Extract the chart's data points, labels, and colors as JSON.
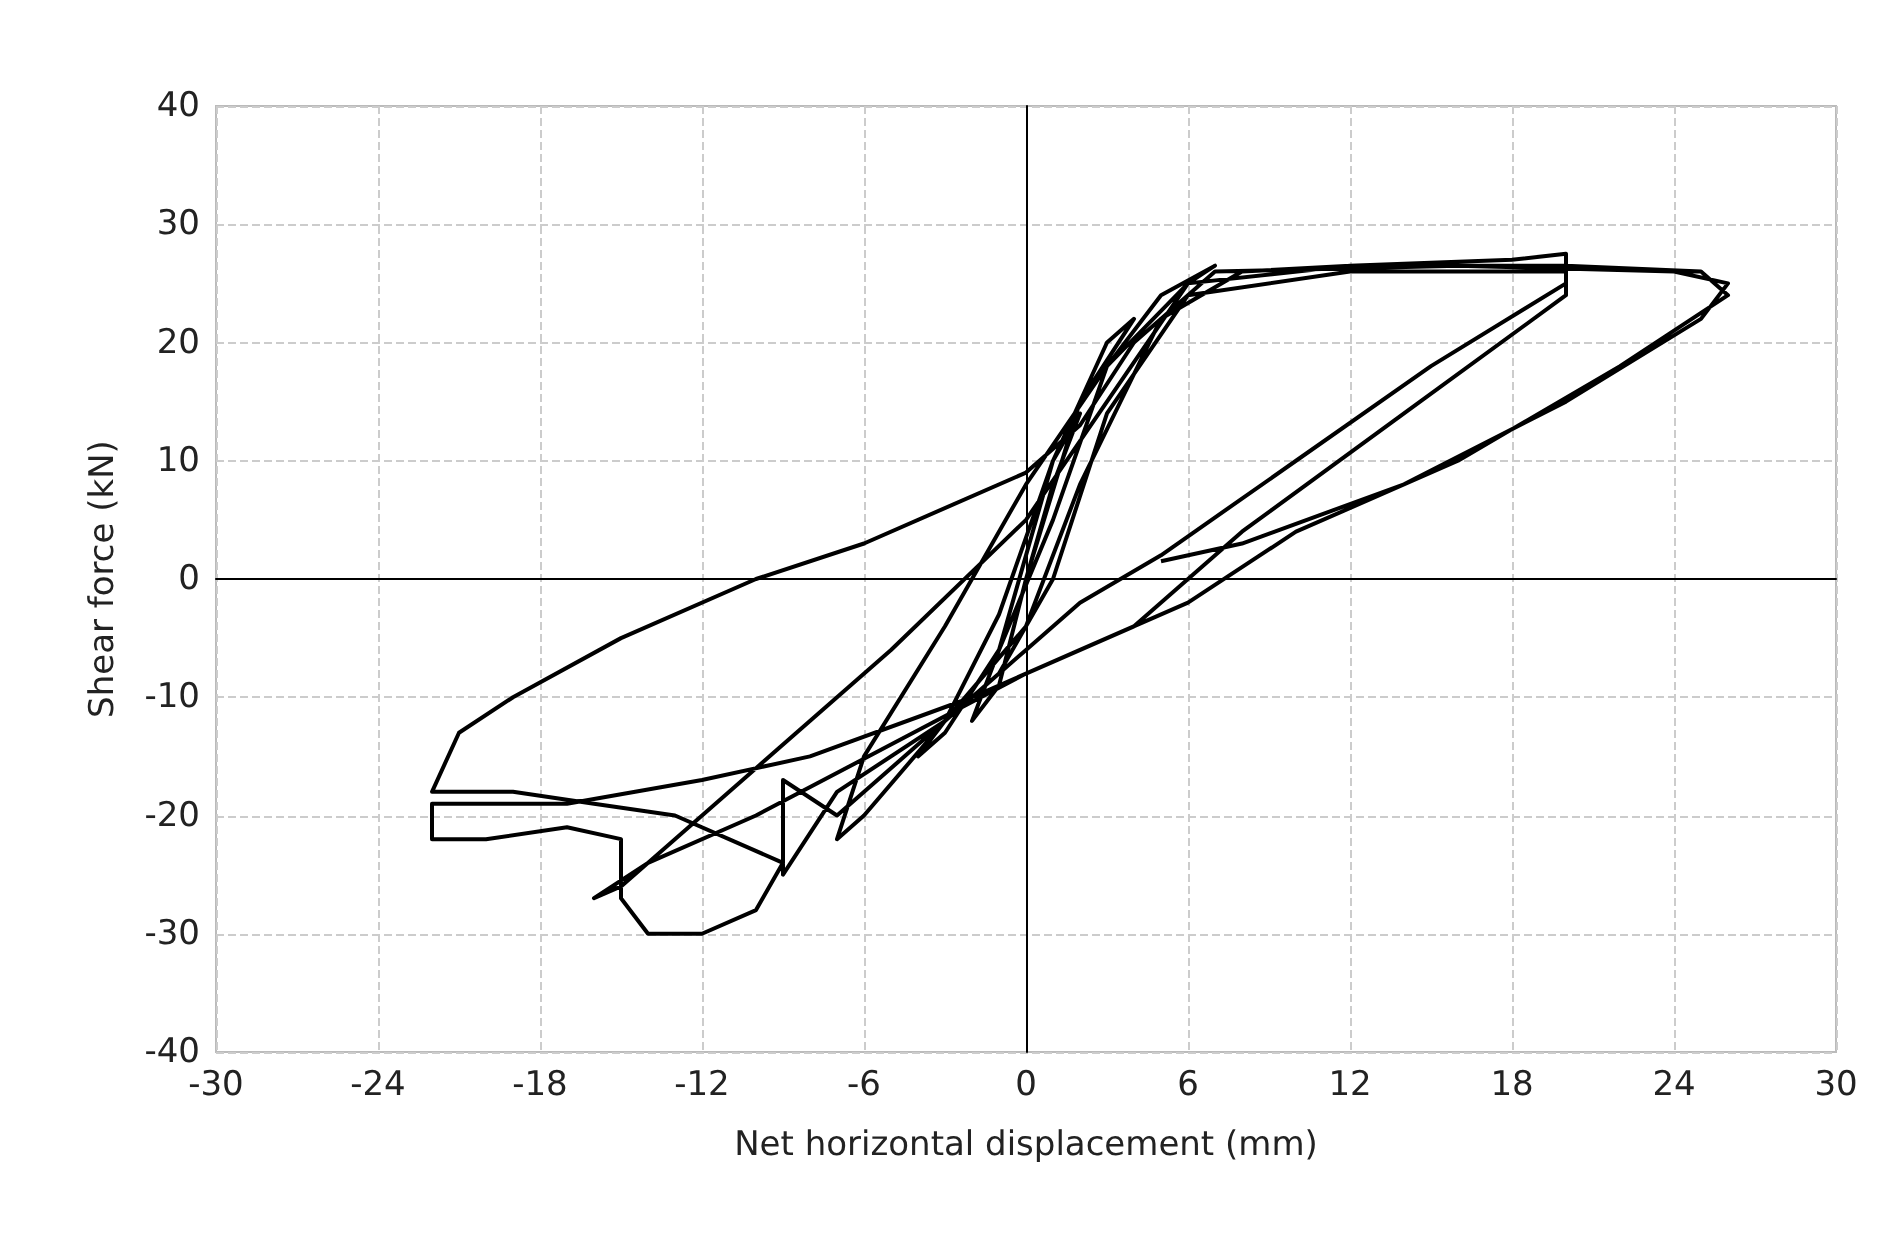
{
  "chart_data": {
    "type": "line",
    "xlabel": "Net horizontal displacement (mm)",
    "ylabel": "Shear force (kN)",
    "xlim": [
      -30,
      30
    ],
    "xticks": [
      -30,
      -24,
      -18,
      -12,
      -6,
      0,
      6,
      12,
      18,
      24,
      30
    ],
    "ylim": [
      -40,
      40
    ],
    "yticks": [
      -40,
      -30,
      -20,
      -10,
      0,
      10,
      20,
      30,
      40
    ],
    "grid": true,
    "marker": "none",
    "line_style": "solid",
    "series": [
      {
        "color": "#000000",
        "x": [
          0,
          1,
          2,
          1,
          0,
          -1,
          -2,
          -1,
          0,
          2,
          4,
          3,
          1,
          -1,
          -3,
          -4,
          -3,
          -1,
          1,
          3,
          5,
          7,
          6,
          3,
          0,
          -3,
          -6,
          -7,
          -6,
          -3,
          0,
          2,
          5,
          8,
          12,
          18,
          20,
          20,
          15,
          10,
          5,
          2,
          0,
          -3,
          -7,
          -9,
          -9,
          -7,
          -4,
          -1,
          1,
          3,
          6,
          12,
          20,
          20,
          14,
          8,
          4,
          0,
          -5,
          -10,
          -14,
          -16,
          -15,
          -10,
          -5,
          0,
          3,
          6,
          12,
          20,
          25,
          26,
          22,
          16,
          10,
          6,
          2,
          -2,
          -8,
          -12,
          -17,
          -22,
          -22,
          -20,
          -17,
          -15,
          -15,
          -14,
          -12,
          -10,
          -9,
          -13,
          -16,
          -19,
          -22,
          -21,
          -19,
          -15,
          -10,
          -6,
          0,
          2,
          4,
          7,
          16,
          24,
          26,
          25,
          20,
          14,
          8,
          5
        ],
        "values": [
          0,
          8,
          14,
          10,
          2,
          -6,
          -12,
          -9,
          0,
          15,
          22,
          20,
          10,
          -3,
          -12,
          -15,
          -13,
          -6,
          5,
          18,
          24,
          26.5,
          25,
          18,
          8,
          -4,
          -15,
          -22,
          -20,
          -12,
          -4,
          8,
          22,
          26,
          26.5,
          27,
          27.5,
          25,
          18,
          10,
          2,
          -2,
          -6,
          -12,
          -18,
          -25,
          -17,
          -20,
          -14,
          -8,
          0,
          14,
          24,
          26,
          26,
          24,
          14,
          4,
          -4,
          -8,
          -14,
          -20,
          -24,
          -27,
          -26,
          -16,
          -6,
          5,
          15,
          25,
          26.5,
          26.5,
          26,
          24,
          18,
          10,
          4,
          -2,
          -6,
          -10,
          -15,
          -17,
          -19,
          -19,
          -22,
          -22,
          -21,
          -22,
          -27,
          -30,
          -30,
          -28,
          -24,
          -20,
          -19,
          -18,
          -18,
          -13,
          -10,
          -5,
          0,
          3,
          9,
          13,
          20,
          26,
          26.5,
          26,
          25,
          22,
          15,
          8,
          3,
          1.5
        ]
      }
    ]
  }
}
